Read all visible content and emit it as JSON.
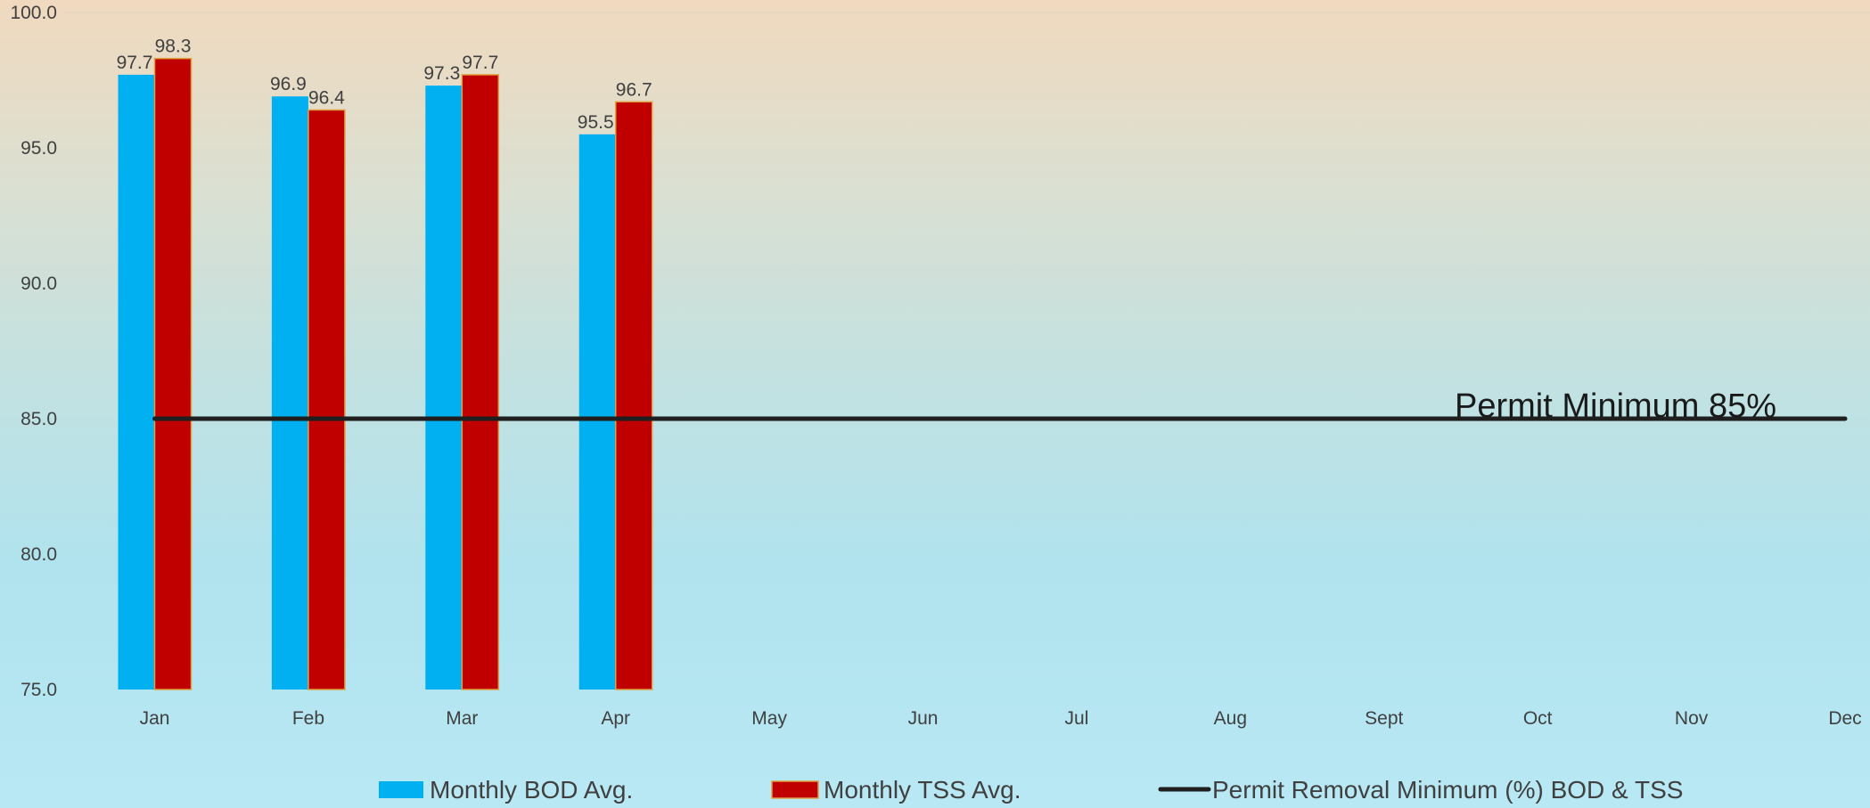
{
  "chart_data": {
    "type": "bar",
    "categories": [
      "Jan",
      "Feb",
      "Mar",
      "Apr",
      "May",
      "Jun",
      "Jul",
      "Aug",
      "Sept",
      "Oct",
      "Nov",
      "Dec"
    ],
    "series": [
      {
        "name": "Monthly BOD Avg.",
        "type": "bar",
        "color": "#00B0F0",
        "values": [
          97.7,
          96.9,
          97.3,
          95.5,
          null,
          null,
          null,
          null,
          null,
          null,
          null,
          null
        ]
      },
      {
        "name": "Monthly TSS Avg.",
        "type": "bar",
        "color": "#C00000",
        "values": [
          98.3,
          96.4,
          97.7,
          96.7,
          null,
          null,
          null,
          null,
          null,
          null,
          null,
          null
        ]
      },
      {
        "name": "Permit Removal Minimum (%) BOD & TSS",
        "type": "line",
        "color": "#1F1F1F",
        "values": [
          85,
          85,
          85,
          85,
          85,
          85,
          85,
          85,
          85,
          85,
          85,
          85
        ]
      }
    ],
    "ylim": [
      75,
      100
    ],
    "yticks": [
      "75.0",
      "80.0",
      "85.0",
      "90.0",
      "95.0",
      "100.0"
    ],
    "annotation": "Permit Minimum 85%",
    "legend_position": "bottom",
    "grid": false
  }
}
